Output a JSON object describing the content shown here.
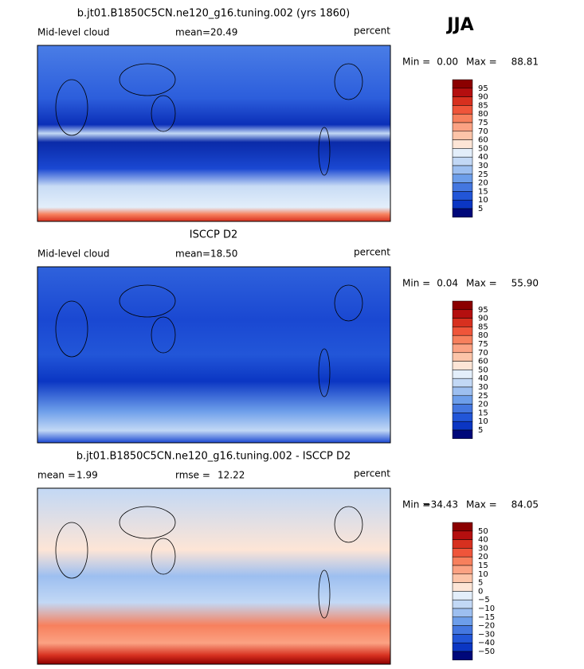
{
  "season": "JJA",
  "panels": [
    {
      "title": "b.jt01.B1850C5CN.ne120_g16.tuning.002 (yrs 1860)",
      "left": "Mid-level cloud",
      "stat1_label": "mean=",
      "stat1": "20.49",
      "units": "percent",
      "min_label": "Min =",
      "min": "0.00",
      "max_label": "Max =",
      "max": "88.81",
      "colorbar": [
        "95",
        "90",
        "85",
        "80",
        "75",
        "70",
        "60",
        "50",
        "40",
        "30",
        "25",
        "20",
        "15",
        "10",
        "5"
      ]
    },
    {
      "title": "ISCCP D2",
      "left": "Mid-level cloud",
      "stat1_label": "mean=",
      "stat1": "18.50",
      "units": "percent",
      "min_label": "Min =",
      "min": "0.04",
      "max_label": "Max =",
      "max": "55.90",
      "colorbar": [
        "95",
        "90",
        "85",
        "80",
        "75",
        "70",
        "60",
        "50",
        "40",
        "30",
        "25",
        "20",
        "15",
        "10",
        "5"
      ]
    },
    {
      "title": "b.jt01.B1850C5CN.ne120_g16.tuning.002 - ISCCP D2",
      "stat1_label": "mean =",
      "stat1": "1.99",
      "stat2_label": "rmse =",
      "stat2": "12.22",
      "units": "percent",
      "min_label": "Min =",
      "min": "−34.43",
      "max_label": "Max =",
      "max": "84.05",
      "colorbar": [
        "50",
        "40",
        "30",
        "20",
        "15",
        "10",
        "5",
        "0",
        "−5",
        "−10",
        "−15",
        "−20",
        "−30",
        "−40",
        "−50"
      ]
    }
  ]
}
